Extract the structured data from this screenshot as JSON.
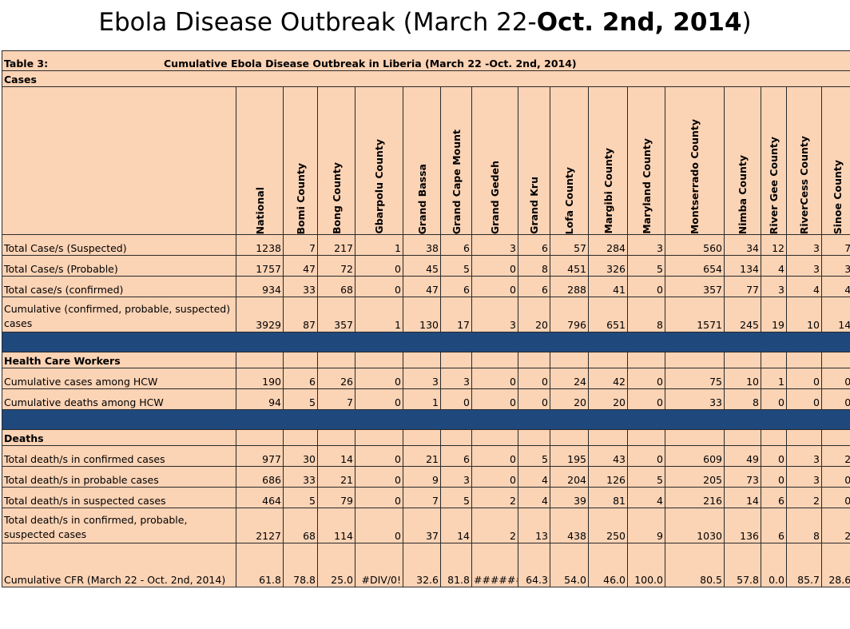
{
  "title": {
    "part1": "Ebola Disease Outbreak (March 22-",
    "part2": "Oct. 2nd, 2014",
    "part3": ")"
  },
  "table": {
    "label": "Table 3:",
    "caption": "Cumulative Ebola Disease Outbreak in Liberia (March 22 -Oct. 2nd, 2014)",
    "columns": [
      "National",
      "Bomi County",
      "Bong County",
      "Gbarpolu County",
      "Grand Bassa",
      "Grand Cape Mount",
      "Grand Gedeh",
      "Grand Kru",
      "Lofa County",
      "Margibi County",
      "Maryland County",
      "Montserrado County",
      "Nimba County",
      "River Gee County",
      "RiverCess County",
      "Sinoe County"
    ],
    "sections": {
      "cases": "Cases",
      "hcw": "Health Care Workers",
      "deaths": "Deaths"
    },
    "rows": {
      "suspected": {
        "label": "Total Case/s (Suspected)",
        "values": [
          "1238",
          "7",
          "217",
          "1",
          "38",
          "6",
          "3",
          "6",
          "57",
          "284",
          "3",
          "560",
          "34",
          "12",
          "3",
          "7"
        ]
      },
      "probable": {
        "label": "Total Case/s (Probable)",
        "values": [
          "1757",
          "47",
          "72",
          "0",
          "45",
          "5",
          "0",
          "8",
          "451",
          "326",
          "5",
          "654",
          "134",
          "4",
          "3",
          "3"
        ]
      },
      "confirmed": {
        "label": "Total case/s (confirmed)",
        "values": [
          "934",
          "33",
          "68",
          "0",
          "47",
          "6",
          "0",
          "6",
          "288",
          "41",
          "0",
          "357",
          "77",
          "3",
          "4",
          "4"
        ]
      },
      "cumulative_cases": {
        "label": "Cumulative (confirmed, probable, suspected) cases",
        "values": [
          "3929",
          "87",
          "357",
          "1",
          "130",
          "17",
          "3",
          "20",
          "796",
          "651",
          "8",
          "1571",
          "245",
          "19",
          "10",
          "14"
        ]
      },
      "hcw_cases": {
        "label": "Cumulative  cases among HCW",
        "values": [
          "190",
          "6",
          "26",
          "0",
          "3",
          "3",
          "0",
          "0",
          "24",
          "42",
          "0",
          "75",
          "10",
          "1",
          "0",
          "0"
        ]
      },
      "hcw_deaths": {
        "label": "Cumulative  deaths among HCW",
        "values": [
          "94",
          "5",
          "7",
          "0",
          "1",
          "0",
          "0",
          "0",
          "20",
          "20",
          "0",
          "33",
          "8",
          "0",
          "0",
          "0"
        ]
      },
      "deaths_confirmed": {
        "label": "Total death/s in confirmed cases",
        "values": [
          "977",
          "30",
          "14",
          "0",
          "21",
          "6",
          "0",
          "5",
          "195",
          "43",
          "0",
          "609",
          "49",
          "0",
          "3",
          "2"
        ]
      },
      "deaths_probable": {
        "label": "Total death/s in probable cases",
        "values": [
          "686",
          "33",
          "21",
          "0",
          "9",
          "3",
          "0",
          "4",
          "204",
          "126",
          "5",
          "205",
          "73",
          "0",
          "3",
          "0"
        ]
      },
      "deaths_suspected": {
        "label": "Total death/s in suspected cases",
        "values": [
          "464",
          "5",
          "79",
          "0",
          "7",
          "5",
          "2",
          "4",
          "39",
          "81",
          "4",
          "216",
          "14",
          "6",
          "2",
          "0"
        ]
      },
      "deaths_total": {
        "label": "Total death/s in confirmed, probable, suspected cases",
        "values": [
          "2127",
          "68",
          "114",
          "0",
          "37",
          "14",
          "2",
          "13",
          "438",
          "250",
          "9",
          "1030",
          "136",
          "6",
          "8",
          "2"
        ]
      },
      "cfr": {
        "label": "Cumulative CFR (March 22 - Oct. 2nd, 2014)",
        "values": [
          "61.8",
          "78.8",
          "25.0",
          "#DIV/0!",
          "32.6",
          "81.8",
          "######",
          "64.3",
          "54.0",
          "46.0",
          "100.0",
          "80.5",
          "57.8",
          "0.0",
          "85.7",
          "28.6"
        ]
      }
    }
  },
  "colors": {
    "sheet_fill": "#fbd3b5",
    "band_fill": "#1f497d"
  }
}
